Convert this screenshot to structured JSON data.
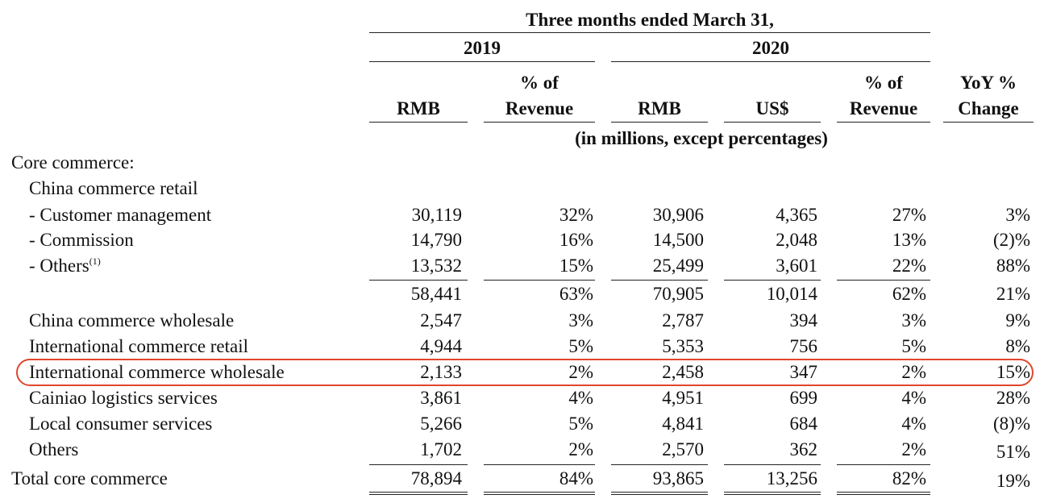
{
  "header": {
    "period": "Three months ended March 31,",
    "years": [
      "2019",
      "2020"
    ],
    "columns": {
      "rmb_2019": "RMB",
      "pct_2019": [
        "% of",
        "Revenue"
      ],
      "rmb_2020": "RMB",
      "usd_2020": "US$",
      "pct_2020": [
        "% of",
        "Revenue"
      ],
      "yoy": [
        "YoY %",
        "Change"
      ]
    },
    "units": "(in millions, except percentages)"
  },
  "section_title": "Core commerce:",
  "subsection_title": "China commerce retail",
  "rows": [
    {
      "label": "- Customer management",
      "rmb_2019": "30,119",
      "pct_2019": "32%",
      "rmb_2020": "30,906",
      "usd_2020": "4,365",
      "pct_2020": "27%",
      "yoy": "3%"
    },
    {
      "label": "- Commission",
      "rmb_2019": "14,790",
      "pct_2019": "16%",
      "rmb_2020": "14,500",
      "usd_2020": "2,048",
      "pct_2020": "13%",
      "yoy": "(2)%"
    },
    {
      "label": "- Others",
      "footnote": "(1)",
      "rmb_2019": "13,532",
      "pct_2019": "15%",
      "rmb_2020": "25,499",
      "usd_2020": "3,601",
      "pct_2020": "22%",
      "yoy": "88%"
    },
    {
      "label": "",
      "rmb_2019": "58,441",
      "pct_2019": "63%",
      "rmb_2020": "70,905",
      "usd_2020": "10,014",
      "pct_2020": "62%",
      "yoy": "21%"
    },
    {
      "label": "China commerce wholesale",
      "rmb_2019": "2,547",
      "pct_2019": "3%",
      "rmb_2020": "2,787",
      "usd_2020": "394",
      "pct_2020": "3%",
      "yoy": "9%"
    },
    {
      "label": "International commerce retail",
      "rmb_2019": "4,944",
      "pct_2019": "5%",
      "rmb_2020": "5,353",
      "usd_2020": "756",
      "pct_2020": "5%",
      "yoy": "8%"
    },
    {
      "label": "International commerce wholesale",
      "rmb_2019": "2,133",
      "pct_2019": "2%",
      "rmb_2020": "2,458",
      "usd_2020": "347",
      "pct_2020": "2%",
      "yoy": "15%",
      "highlighted": true
    },
    {
      "label": "Cainiao logistics services",
      "rmb_2019": "3,861",
      "pct_2019": "4%",
      "rmb_2020": "4,951",
      "usd_2020": "699",
      "pct_2020": "4%",
      "yoy": "28%"
    },
    {
      "label": "Local consumer services",
      "rmb_2019": "5,266",
      "pct_2019": "5%",
      "rmb_2020": "4,841",
      "usd_2020": "684",
      "pct_2020": "4%",
      "yoy": "(8)%"
    },
    {
      "label": "Others",
      "rmb_2019": "1,702",
      "pct_2019": "2%",
      "rmb_2020": "2,570",
      "usd_2020": "362",
      "pct_2020": "2%",
      "yoy": "51%"
    },
    {
      "label": "Total core commerce",
      "rmb_2019": "78,894",
      "pct_2019": "84%",
      "rmb_2020": "93,865",
      "usd_2020": "13,256",
      "pct_2020": "82%",
      "yoy": "19%"
    }
  ],
  "highlight_color": "#e0452b"
}
